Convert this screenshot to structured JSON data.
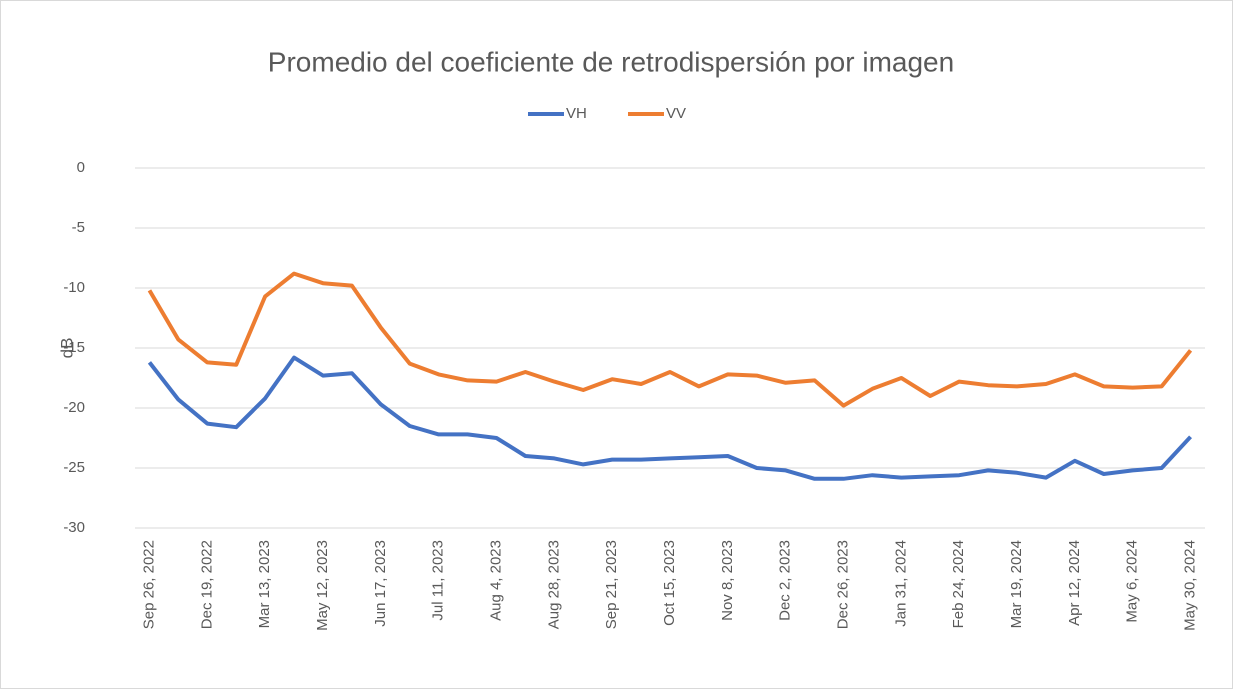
{
  "chart_data": {
    "type": "line",
    "title": "Promedio del coeficiente de retrodispersión por imagen",
    "y_label": "dB",
    "categories": [
      "Sep 26, 2022",
      null,
      "Dec 19, 2022",
      null,
      "Mar 13, 2023",
      null,
      "May 12, 2023",
      null,
      "Jun 17, 2023",
      null,
      "Jul 11, 2023",
      null,
      "Aug 4, 2023",
      null,
      "Aug 28, 2023",
      null,
      "Sep 21, 2023",
      null,
      "Oct 15, 2023",
      null,
      "Nov 8, 2023",
      null,
      "Dec 2, 2023",
      null,
      "Dec 26, 2023",
      null,
      "Jan 31, 2024",
      null,
      "Feb 24, 2024",
      null,
      "Mar 19, 2024",
      null,
      "Apr 12, 2024",
      null,
      "May 6, 2024",
      null,
      "May 30, 2024"
    ],
    "series": [
      {
        "name": "VH",
        "color": "#4472c4",
        "values": [
          -16.2,
          -19.3,
          -21.3,
          -21.6,
          -19.2,
          -15.8,
          -17.3,
          -17.1,
          -19.7,
          -21.5,
          -22.2,
          -22.2,
          -22.5,
          -24.0,
          -24.2,
          -24.7,
          -24.3,
          -24.3,
          -24.2,
          -24.1,
          -24.0,
          -25.0,
          -25.2,
          -25.9,
          -25.9,
          -25.6,
          -25.8,
          -25.7,
          -25.6,
          -25.2,
          -25.4,
          -25.8,
          -24.4,
          -25.5,
          -25.2,
          -25.0,
          -22.4
        ]
      },
      {
        "name": "VV",
        "color": "#ed7d31",
        "values": [
          -10.2,
          -14.3,
          -16.2,
          -16.4,
          -10.7,
          -8.8,
          -9.6,
          -9.8,
          -13.3,
          -16.3,
          -17.2,
          -17.7,
          -17.8,
          -17.0,
          -17.8,
          -18.5,
          -17.6,
          -18.0,
          -17.0,
          -18.2,
          -17.2,
          -17.3,
          -17.9,
          -17.7,
          -19.8,
          -18.4,
          -17.5,
          -19.0,
          -17.8,
          -18.1,
          -18.2,
          -18.0,
          -17.2,
          -18.2,
          -18.3,
          -18.2,
          -15.2
        ]
      }
    ],
    "ylim": [
      -30,
      0
    ],
    "yticks": [
      -30,
      -25,
      -20,
      -15,
      -10,
      -5,
      0
    ],
    "grid": true,
    "legend": "top"
  }
}
